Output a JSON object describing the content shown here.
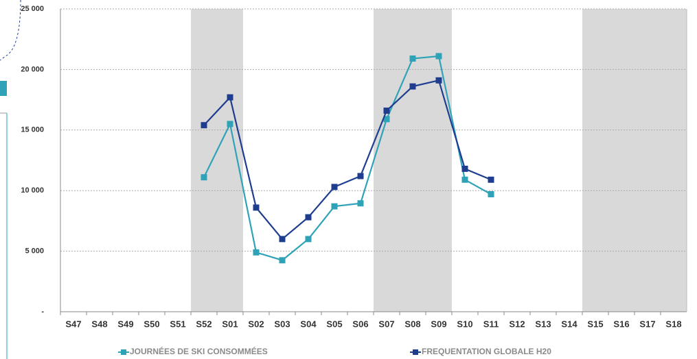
{
  "chart_data": {
    "type": "line",
    "categories": [
      "S47",
      "S48",
      "S49",
      "S50",
      "S51",
      "S52",
      "S01",
      "S02",
      "S03",
      "S04",
      "S05",
      "S06",
      "S07",
      "S08",
      "S09",
      "S10",
      "S11",
      "S12",
      "S13",
      "S14",
      "S15",
      "S16",
      "S17",
      "S18"
    ],
    "series": [
      {
        "name": "JOURNÉES DE SKI CONSOMMÉES",
        "color": "#2ea3b7",
        "values": [
          null,
          null,
          null,
          null,
          null,
          11100,
          15500,
          4900,
          4250,
          6000,
          8700,
          8950,
          15900,
          20900,
          21100,
          10900,
          9700,
          null,
          null,
          null,
          null,
          null,
          null,
          null
        ]
      },
      {
        "name": "FREQUENTATION GLOBALE H20",
        "color": "#1f3d8f",
        "values": [
          null,
          null,
          null,
          null,
          null,
          15400,
          17700,
          8600,
          6000,
          7800,
          10300,
          11200,
          16600,
          18600,
          19100,
          11800,
          10900,
          null,
          null,
          null,
          null,
          null,
          null,
          null
        ]
      }
    ],
    "ylim": [
      0,
      25000
    ],
    "yticks": [
      {
        "value": 0,
        "label": "-"
      },
      {
        "value": 5000,
        "label": "5 000"
      },
      {
        "value": 10000,
        "label": "10 000"
      },
      {
        "value": 15000,
        "label": "15 000"
      },
      {
        "value": 20000,
        "label": "20 000"
      },
      {
        "value": 25000,
        "label": "25 000"
      }
    ],
    "grid": true,
    "highlight_ranges": [
      [
        5,
        6
      ],
      [
        12,
        14
      ],
      [
        20,
        23
      ]
    ],
    "highlight_color": "#d9d9d9",
    "legend": "bottom"
  }
}
